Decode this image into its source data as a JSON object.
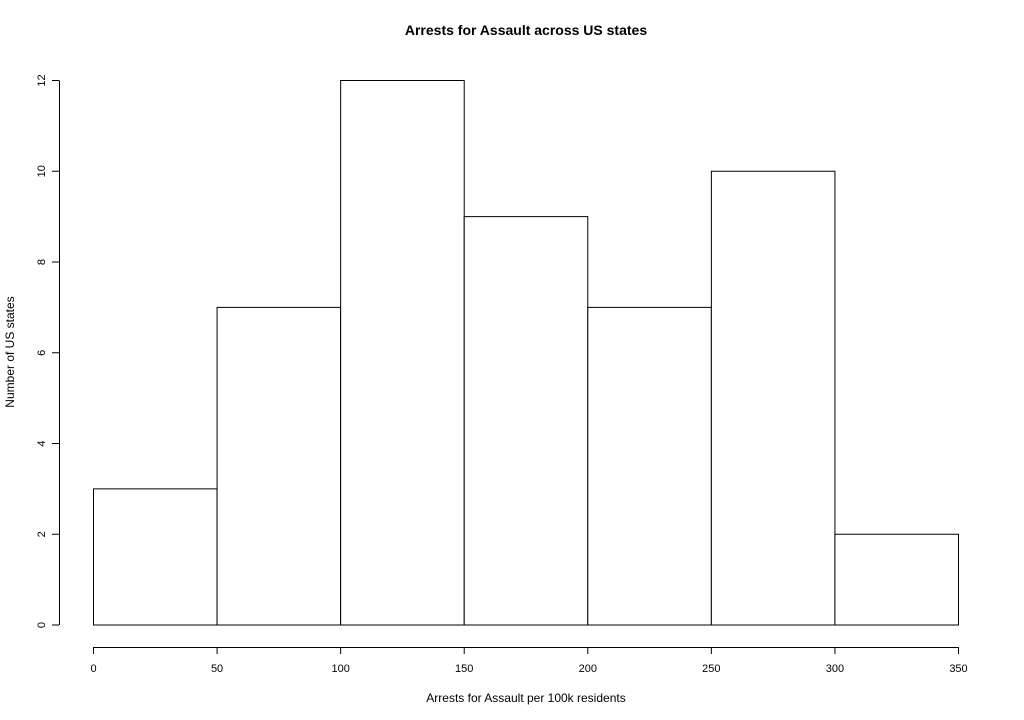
{
  "chart_data": {
    "type": "bar",
    "title": "Arrests for Assault across US states",
    "xlabel": "Arrests for Assault per 100k residents",
    "ylabel": "Number of US states",
    "bins": [
      {
        "from": 0,
        "to": 50,
        "count": 3
      },
      {
        "from": 50,
        "to": 100,
        "count": 7
      },
      {
        "from": 100,
        "to": 150,
        "count": 12
      },
      {
        "from": 150,
        "to": 200,
        "count": 9
      },
      {
        "from": 200,
        "to": 250,
        "count": 7
      },
      {
        "from": 250,
        "to": 300,
        "count": 10
      },
      {
        "from": 300,
        "to": 350,
        "count": 2
      }
    ],
    "xlim": [
      0,
      350
    ],
    "ylim": [
      0,
      12
    ],
    "xticks": [
      0,
      50,
      100,
      150,
      200,
      250,
      300,
      350
    ],
    "yticks": [
      0,
      2,
      4,
      6,
      8,
      10,
      12
    ],
    "grid": false,
    "colors": {
      "bar_fill": "#ffffff",
      "bar_stroke": "#000000",
      "axis": "#000000"
    }
  }
}
